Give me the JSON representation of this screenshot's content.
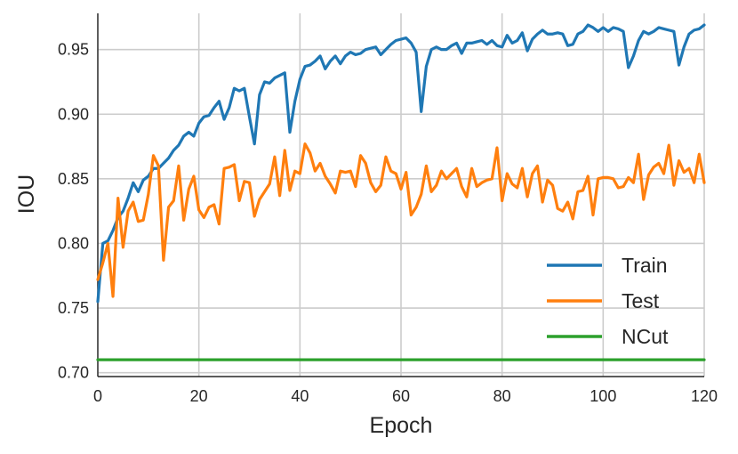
{
  "chart_data": {
    "type": "line",
    "xlabel": "Epoch",
    "ylabel": "IOU",
    "xlim": [
      0,
      120
    ],
    "ylim": [
      0.697,
      0.978
    ],
    "xticks": [
      0,
      20,
      40,
      60,
      80,
      100,
      120
    ],
    "xtick_labels": [
      "0",
      "20",
      "40",
      "60",
      "80",
      "100",
      "120"
    ],
    "yticks": [
      0.7,
      0.75,
      0.8,
      0.85,
      0.9,
      0.95
    ],
    "ytick_labels": [
      "0.70",
      "0.75",
      "0.80",
      "0.85",
      "0.90",
      "0.95"
    ],
    "grid": true,
    "legend_position": "lower-right",
    "x": [
      0,
      1,
      2,
      3,
      4,
      5,
      6,
      7,
      8,
      9,
      10,
      11,
      12,
      13,
      14,
      15,
      16,
      17,
      18,
      19,
      20,
      21,
      22,
      23,
      24,
      25,
      26,
      27,
      28,
      29,
      30,
      31,
      32,
      33,
      34,
      35,
      36,
      37,
      38,
      39,
      40,
      41,
      42,
      43,
      44,
      45,
      46,
      47,
      48,
      49,
      50,
      51,
      52,
      53,
      54,
      55,
      56,
      57,
      58,
      59,
      60,
      61,
      62,
      63,
      64,
      65,
      66,
      67,
      68,
      69,
      70,
      71,
      72,
      73,
      74,
      75,
      76,
      77,
      78,
      79,
      80,
      81,
      82,
      83,
      84,
      85,
      86,
      87,
      88,
      89,
      90,
      91,
      92,
      93,
      94,
      95,
      96,
      97,
      98,
      99,
      100,
      101,
      102,
      103,
      104,
      105,
      106,
      107,
      108,
      109,
      110,
      111,
      112,
      113,
      114,
      115,
      116,
      117,
      118,
      119,
      120
    ],
    "series": [
      {
        "name": "Train",
        "color": "#1f77b4",
        "values": [
          0.755,
          0.8,
          0.802,
          0.81,
          0.82,
          0.825,
          0.835,
          0.847,
          0.84,
          0.849,
          0.852,
          0.858,
          0.858,
          0.862,
          0.866,
          0.872,
          0.876,
          0.883,
          0.886,
          0.883,
          0.893,
          0.898,
          0.899,
          0.905,
          0.91,
          0.896,
          0.905,
          0.92,
          0.918,
          0.92,
          0.898,
          0.877,
          0.915,
          0.925,
          0.924,
          0.928,
          0.93,
          0.932,
          0.886,
          0.91,
          0.927,
          0.937,
          0.938,
          0.941,
          0.945,
          0.935,
          0.941,
          0.945,
          0.939,
          0.945,
          0.948,
          0.946,
          0.947,
          0.95,
          0.951,
          0.952,
          0.946,
          0.95,
          0.954,
          0.957,
          0.958,
          0.959,
          0.955,
          0.948,
          0.902,
          0.937,
          0.95,
          0.952,
          0.95,
          0.95,
          0.953,
          0.955,
          0.947,
          0.955,
          0.955,
          0.956,
          0.957,
          0.954,
          0.957,
          0.953,
          0.952,
          0.961,
          0.955,
          0.957,
          0.963,
          0.949,
          0.958,
          0.962,
          0.965,
          0.962,
          0.962,
          0.963,
          0.962,
          0.953,
          0.954,
          0.962,
          0.964,
          0.969,
          0.967,
          0.964,
          0.967,
          0.964,
          0.967,
          0.966,
          0.964,
          0.936,
          0.945,
          0.957,
          0.964,
          0.962,
          0.964,
          0.967,
          0.966,
          0.965,
          0.964,
          0.938,
          0.952,
          0.962,
          0.965,
          0.966,
          0.969
        ]
      },
      {
        "name": "Test",
        "color": "#ff7f0e",
        "values": [
          0.772,
          0.785,
          0.8,
          0.759,
          0.835,
          0.797,
          0.825,
          0.832,
          0.817,
          0.818,
          0.838,
          0.868,
          0.86,
          0.787,
          0.828,
          0.833,
          0.86,
          0.818,
          0.842,
          0.852,
          0.826,
          0.82,
          0.828,
          0.83,
          0.815,
          0.858,
          0.859,
          0.861,
          0.833,
          0.848,
          0.847,
          0.821,
          0.834,
          0.84,
          0.846,
          0.867,
          0.837,
          0.872,
          0.841,
          0.856,
          0.854,
          0.877,
          0.87,
          0.856,
          0.862,
          0.852,
          0.846,
          0.839,
          0.856,
          0.855,
          0.856,
          0.844,
          0.868,
          0.862,
          0.847,
          0.84,
          0.845,
          0.867,
          0.856,
          0.854,
          0.842,
          0.855,
          0.822,
          0.828,
          0.838,
          0.86,
          0.84,
          0.845,
          0.856,
          0.85,
          0.854,
          0.858,
          0.844,
          0.836,
          0.858,
          0.844,
          0.847,
          0.849,
          0.85,
          0.874,
          0.833,
          0.854,
          0.846,
          0.843,
          0.858,
          0.836,
          0.854,
          0.86,
          0.832,
          0.849,
          0.845,
          0.827,
          0.825,
          0.832,
          0.819,
          0.84,
          0.841,
          0.852,
          0.822,
          0.85,
          0.851,
          0.851,
          0.85,
          0.843,
          0.844,
          0.851,
          0.847,
          0.869,
          0.834,
          0.853,
          0.859,
          0.862,
          0.854,
          0.876,
          0.845,
          0.864,
          0.855,
          0.858,
          0.847,
          0.869,
          0.847
        ]
      },
      {
        "name": "NCut",
        "color": "#2ca02c",
        "values": [
          0.71,
          0.71,
          0.71,
          0.71,
          0.71,
          0.71,
          0.71,
          0.71,
          0.71,
          0.71,
          0.71,
          0.71,
          0.71,
          0.71,
          0.71,
          0.71,
          0.71,
          0.71,
          0.71,
          0.71,
          0.71,
          0.71,
          0.71,
          0.71,
          0.71,
          0.71,
          0.71,
          0.71,
          0.71,
          0.71,
          0.71,
          0.71,
          0.71,
          0.71,
          0.71,
          0.71,
          0.71,
          0.71,
          0.71,
          0.71,
          0.71,
          0.71,
          0.71,
          0.71,
          0.71,
          0.71,
          0.71,
          0.71,
          0.71,
          0.71,
          0.71,
          0.71,
          0.71,
          0.71,
          0.71,
          0.71,
          0.71,
          0.71,
          0.71,
          0.71,
          0.71,
          0.71,
          0.71,
          0.71,
          0.71,
          0.71,
          0.71,
          0.71,
          0.71,
          0.71,
          0.71,
          0.71,
          0.71,
          0.71,
          0.71,
          0.71,
          0.71,
          0.71,
          0.71,
          0.71,
          0.71,
          0.71,
          0.71,
          0.71,
          0.71,
          0.71,
          0.71,
          0.71,
          0.71,
          0.71,
          0.71,
          0.71,
          0.71,
          0.71,
          0.71,
          0.71,
          0.71,
          0.71,
          0.71,
          0.71,
          0.71,
          0.71,
          0.71,
          0.71,
          0.71,
          0.71,
          0.71,
          0.71,
          0.71,
          0.71,
          0.71,
          0.71,
          0.71,
          0.71,
          0.71,
          0.71,
          0.71,
          0.71,
          0.71,
          0.71,
          0.71
        ]
      }
    ]
  }
}
